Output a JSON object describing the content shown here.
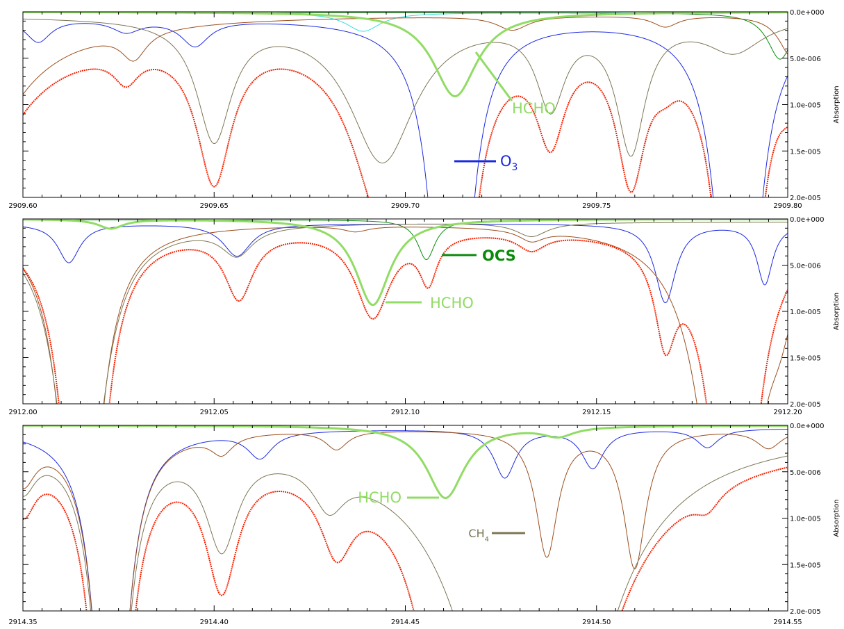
{
  "colors": {
    "HCHO": "#90dc64",
    "O3": "#1a28e0",
    "OCS": "#0a8a0a",
    "CH4": "#7c7654",
    "H2O": "#9c4e1c",
    "obs": "#f52000",
    "cyan": "#34e0e0"
  },
  "chart_data": [
    {
      "type": "line",
      "title": "",
      "xlabel": "",
      "ylabel": "Absorption",
      "xlim": [
        2909.6,
        2909.8
      ],
      "ylim": [
        0.0,
        2e-05
      ],
      "y_inverted": true,
      "x_ticks": [
        "2909.60",
        "2909.65",
        "2909.70",
        "2909.75",
        "2909.80"
      ],
      "y_ticks": [
        "0.0e+000",
        "5.0e-006",
        "1.0e-005",
        "1.5e-005",
        "2.0e-005"
      ],
      "annotations": [
        {
          "text": "HCHO",
          "color_key": "HCHO",
          "x": 2909.722,
          "y": 1.05e-05
        },
        {
          "text": "O",
          "subscript": "3",
          "color_key": "O3",
          "x": 2909.724,
          "y": 1.63e-05
        }
      ],
      "series": [
        {
          "color_key": "cyan",
          "width": 1,
          "baseline": 1e-07,
          "lines": [
            [
              2909.689,
              2e-06,
              0.0055
            ]
          ]
        },
        {
          "color_key": "OCS",
          "width": 1,
          "baseline": 1e-07,
          "lines": [
            [
              2909.798,
              5e-06,
              0.004
            ]
          ]
        },
        {
          "color_key": "O3",
          "width": 1,
          "baseline": 6e-07,
          "lines": [
            [
              2909.604,
              2.5e-06,
              0.004
            ],
            [
              2909.627,
              1.3e-06,
              0.0045
            ],
            [
              2909.645,
              2.8e-06,
              0.0045
            ],
            [
              2909.712,
              6e-05,
              0.0042
            ],
            [
              2909.787,
              6.5e-05,
              0.0042
            ]
          ]
        },
        {
          "color_key": "H2O",
          "width": 1,
          "baseline": 2e-07,
          "lines": [
            [
              2909.578,
              3e-05,
              0.014
            ],
            [
              2909.629,
              3e-06,
              0.004
            ],
            [
              2909.728,
              1.5e-06,
              0.005
            ],
            [
              2909.768,
              1.2e-06,
              0.004
            ],
            [
              2909.801,
              4.5e-06,
              0.004
            ]
          ]
        },
        {
          "color_key": "CH4",
          "width": 1,
          "baseline": 4e-07,
          "lines": [
            [
              2909.65,
              1.29e-05,
              0.0055
            ],
            [
              2909.694,
              1.55e-05,
              0.0105
            ],
            [
              2909.738,
              9e-06,
              0.0045
            ],
            [
              2909.759,
              1.4e-05,
              0.0045
            ],
            [
              2909.786,
              3.5e-06,
              0.009
            ]
          ]
        },
        {
          "color_key": "HCHO",
          "width": 3,
          "baseline": 0,
          "lines": [
            [
              2909.713,
              9.1e-06,
              0.007
            ]
          ]
        },
        {
          "color_key": "obs",
          "width": 2,
          "dotted": true,
          "baseline": 1.3e-06,
          "lines": [
            [
              2909.578,
              3.2e-05,
              0.014
            ],
            [
              2909.627,
              3e-06,
              0.004
            ],
            [
              2909.65,
              1.51e-05,
              0.0055
            ],
            [
              2909.694,
              1.72e-05,
              0.0095
            ],
            [
              2909.7065,
              1.5e-05,
              0.0035
            ],
            [
              2909.712,
              6e-05,
              0.0038
            ],
            [
              2909.713,
              3e-06,
              0.006
            ],
            [
              2909.738,
              1e-05,
              0.0045
            ],
            [
              2909.759,
              1.48e-05,
              0.0045
            ],
            [
              2909.787,
              6.5e-05,
              0.0042
            ],
            [
              2909.768,
              2e-06,
              0.004
            ],
            [
              2909.801,
              4.5e-06,
              0.004
            ]
          ]
        }
      ]
    },
    {
      "type": "line",
      "title": "",
      "xlabel": "",
      "ylabel": "Absorption",
      "xlim": [
        2912.0,
        2912.2
      ],
      "ylim": [
        0.0,
        2e-05
      ],
      "y_inverted": true,
      "x_ticks": [
        "2912.00",
        "2912.05",
        "2912.10",
        "2912.15",
        "2912.20"
      ],
      "y_ticks": [
        "0.0e+000",
        "5.0e-006",
        "1.0e-005",
        "1.5e-005",
        "2.0e-005"
      ],
      "annotations": [
        {
          "text": "OCS",
          "color_key": "OCS",
          "x": 2912.124,
          "y": 4.2e-06
        },
        {
          "text": "HCHO",
          "color_key": "HCHO",
          "x": 2912.112,
          "y": 9.6e-06
        }
      ],
      "series": [
        {
          "color_key": "OCS",
          "width": 1,
          "baseline": 1e-07,
          "lines": [
            [
              2912.1055,
              4.3e-06,
              0.0028
            ]
          ]
        },
        {
          "color_key": "O3",
          "width": 1,
          "baseline": 5e-07,
          "lines": [
            [
              2912.012,
              4.2e-06,
              0.0035
            ],
            [
              2912.056,
              3.5e-06,
              0.0045
            ],
            [
              2912.168,
              8.5e-06,
              0.0033
            ],
            [
              2912.194,
              6.5e-06,
              0.0025
            ]
          ]
        },
        {
          "color_key": "H2O",
          "width": 1,
          "baseline": 3e-07,
          "lines": [
            [
              2912.015,
              5e-05,
              0.005
            ],
            [
              2912.185,
              5e-05,
              0.007
            ],
            [
              2912.133,
              1.2e-06,
              0.004
            ],
            [
              2912.087,
              6e-07,
              0.004
            ],
            [
              2912.198,
              4e-06,
              0.004
            ]
          ]
        },
        {
          "color_key": "CH4",
          "width": 1,
          "baseline": 3e-07,
          "lines": [
            [
              2912.015,
              4e-05,
              0.006
            ],
            [
              2912.056,
              3e-06,
              0.005
            ],
            [
              2912.133,
              1.5e-06,
              0.005
            ]
          ]
        },
        {
          "color_key": "HCHO",
          "width": 3,
          "baseline": 0,
          "lines": [
            [
              2912.0915,
              9.3e-06,
              0.0055
            ],
            [
              2912.023,
              1e-06,
              0.004
            ]
          ]
        },
        {
          "color_key": "obs",
          "width": 2,
          "dotted": true,
          "baseline": 8e-07,
          "lines": [
            [
              2912.016,
              6e-05,
              0.0045
            ],
            [
              2912.0565,
              7e-06,
              0.0045
            ],
            [
              2912.0915,
              9.3e-06,
              0.0055
            ],
            [
              2912.106,
              5e-06,
              0.0028
            ],
            [
              2912.133,
              1.8e-06,
              0.0045
            ],
            [
              2912.168,
              9.5e-06,
              0.0033
            ],
            [
              2912.186,
              5e-05,
              0.0055
            ]
          ]
        }
      ]
    },
    {
      "type": "line",
      "title": "",
      "xlabel": "",
      "ylabel": "Absorption",
      "xlim": [
        2914.35,
        2914.55
      ],
      "ylim": [
        0.0,
        2e-05
      ],
      "y_inverted": true,
      "x_ticks": [
        "2914.35",
        "2914.40",
        "2914.45",
        "2914.50",
        "2914.55"
      ],
      "y_ticks": [
        "0.0e+000",
        "5.0e-006",
        "1.0e-005",
        "1.5e-005",
        "2.0e-005"
      ],
      "annotations": [
        {
          "text": "HCHO",
          "color_key": "HCHO",
          "x": 2914.362,
          "y": 7e-06
        },
        {
          "text": "CH",
          "subscript": "4",
          "color_key": "CH4",
          "x": 2914.468,
          "y": 1.15e-05
        }
      ],
      "series": [
        {
          "color_key": "O3",
          "width": 1,
          "baseline": 3e-07,
          "lines": [
            [
              2914.373,
              5e-05,
              0.004
            ],
            [
              2914.412,
              2.8e-06,
              0.004
            ],
            [
              2914.476,
              5.2e-06,
              0.0035
            ],
            [
              2914.499,
              4.2e-06,
              0.0035
            ],
            [
              2914.529,
              2e-06,
              0.0035
            ]
          ]
        },
        {
          "color_key": "H2O",
          "width": 1,
          "baseline": 3e-07,
          "lines": [
            [
              2914.373,
              5e-05,
              0.004
            ],
            [
              2914.402,
              2e-06,
              0.0035
            ],
            [
              2914.432,
              2e-06,
              0.0035
            ],
            [
              2914.487,
              1.35e-05,
              0.0035
            ],
            [
              2914.51,
              1.48e-05,
              0.0035
            ],
            [
              2914.35,
              5e-06,
              0.004
            ],
            [
              2914.545,
              2e-06,
              0.004
            ]
          ]
        },
        {
          "color_key": "CH4",
          "width": 1,
          "baseline": 3e-07,
          "lines": [
            [
              2914.373,
              5e-05,
              0.004
            ],
            [
              2914.402,
              1.05e-05,
              0.005
            ],
            [
              2914.43,
              4.5e-06,
              0.005
            ],
            [
              2914.484,
              6e-05,
              0.015
            ],
            [
              2914.35,
              5e-06,
              0.004
            ]
          ]
        },
        {
          "color_key": "HCHO",
          "width": 3,
          "baseline": 0,
          "lines": [
            [
              2914.4605,
              7.8e-06,
              0.006
            ],
            [
              2914.49,
              1e-06,
              0.005
            ]
          ]
        },
        {
          "color_key": "obs",
          "width": 2,
          "dotted": true,
          "baseline": 1.4e-06,
          "lines": [
            [
              2914.373,
              6e-05,
              0.004
            ],
            [
              2914.402,
              1.35e-05,
              0.005
            ],
            [
              2914.432,
              7.5e-06,
              0.005
            ],
            [
              2914.4565,
              1.05e-05,
              0.006
            ],
            [
              2914.484,
              6e-05,
              0.015
            ],
            [
              2914.35,
              6e-06,
              0.004
            ],
            [
              2914.529,
              2e-06,
              0.004
            ]
          ]
        }
      ]
    }
  ]
}
